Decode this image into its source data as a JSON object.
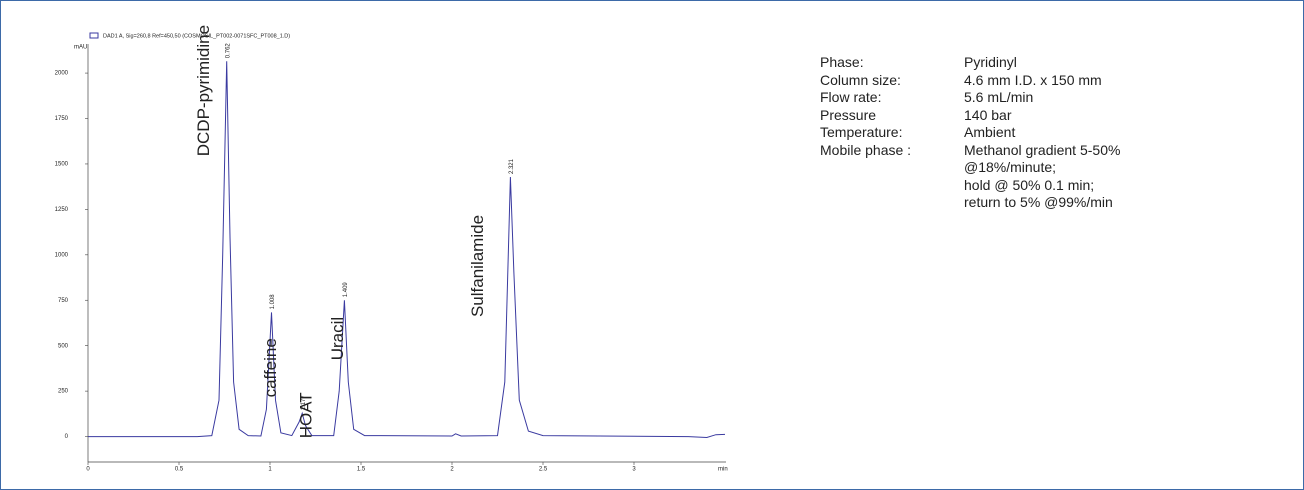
{
  "chart_data": {
    "type": "line",
    "legend": "DAD1 A, Sig=260,8 Ref=450,50 (COSMOSIL_PT002-0071SFC_PT008_1.D)",
    "y_label": "mAU",
    "x_label": "min",
    "xlim": [
      0,
      3.5
    ],
    "ylim": [
      -140,
      2160
    ],
    "xticks": [
      0,
      0.5,
      1,
      1.5,
      2,
      2.5,
      3
    ],
    "yticks": [
      0,
      250,
      500,
      750,
      1000,
      1250,
      1500,
      1750,
      2000
    ],
    "series": [
      {
        "color": "#3a3aa0",
        "x": [
          0,
          0.6,
          0.68,
          0.72,
          0.74,
          0.762,
          0.78,
          0.8,
          0.83,
          0.88,
          0.95,
          0.98,
          1.008,
          1.03,
          1.06,
          1.12,
          1.16,
          1.177,
          1.195,
          1.23,
          1.35,
          1.38,
          1.409,
          1.43,
          1.46,
          1.52,
          2.0,
          2.02,
          2.05,
          2.25,
          2.29,
          2.321,
          2.34,
          2.37,
          2.42,
          2.5,
          3.3,
          3.4,
          3.45,
          3.5
        ],
        "values": [
          0,
          0,
          5,
          200,
          1000,
          2065,
          1100,
          300,
          40,
          5,
          3,
          150,
          683,
          200,
          20,
          5,
          80,
          128,
          60,
          5,
          5,
          250,
          750,
          300,
          40,
          5,
          3,
          15,
          3,
          5,
          300,
          1428,
          900,
          200,
          30,
          5,
          0,
          -5,
          10,
          12
        ]
      }
    ],
    "peaks": [
      {
        "name": "DCDP-pyrimidine",
        "time": 0.762
      },
      {
        "name": "caffeine",
        "time": 1.008
      },
      {
        "name": "HOAT",
        "time": 1.177
      },
      {
        "name": "Uracil",
        "time": 1.409
      },
      {
        "name": "Sulfanilamide",
        "time": 2.321
      }
    ]
  },
  "conditions": [
    {
      "label": "Phase:",
      "value": [
        "Pyridinyl"
      ]
    },
    {
      "label": "Column size:",
      "value": [
        "4.6 mm I.D. x 150 mm"
      ]
    },
    {
      "label": "Flow rate:",
      "value": [
        "5.6 mL/min"
      ]
    },
    {
      "label": "Pressure",
      "value": [
        "140 bar"
      ]
    },
    {
      "label": "Temperature:",
      "value": [
        "Ambient"
      ]
    },
    {
      "label": "Mobile phase :",
      "value": [
        "Methanol gradient 5-50%",
        "@18%/minute;",
        "hold @ 50% 0.1 min;",
        "return to 5% @99%/min"
      ]
    }
  ]
}
